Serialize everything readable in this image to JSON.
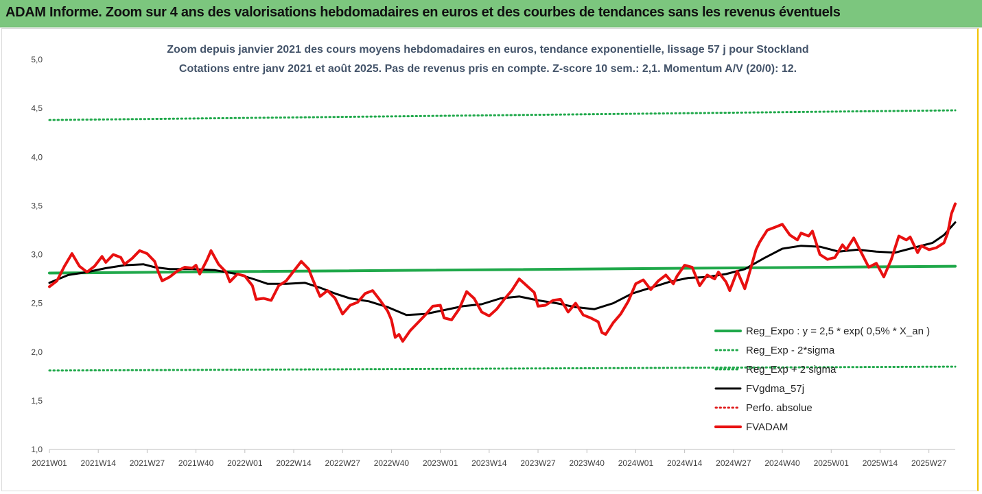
{
  "banner": {
    "title": "ADAM Informe. Zoom sur 4 ans des valorisations hebdomadaires en euros et des courbes de tendances sans les revenus éventuels"
  },
  "colors": {
    "banner_bg": "#7cc67e",
    "trend": "#1fa84a",
    "band": "#1fa84a",
    "smooth": "#000000",
    "perf": "#e02020",
    "price": "#e81010",
    "frame_accent": "#f2c200"
  },
  "chart_data": {
    "type": "line",
    "title": [
      "Zoom depuis janvier 2021 des cours moyens hebdomadaires en euros, tendance exponentielle, lissage 57 j pour Stockland",
      "Cotations entre janv 2021 et août 2025. Pas de revenus pris en compte. Z-score 10 sem.: 2,1. Momentum A/V (20/0): 12."
    ],
    "ylim": [
      1.0,
      5.0
    ],
    "yticks": [
      "1,0",
      "1,5",
      "2,0",
      "2,5",
      "3,0",
      "3,5",
      "4,0",
      "4,5",
      "5,0"
    ],
    "x_range_weeks": [
      0,
      241
    ],
    "xticks": [
      {
        "label": "2021W01",
        "w": 0
      },
      {
        "label": "2021W14",
        "w": 13
      },
      {
        "label": "2021W27",
        "w": 26
      },
      {
        "label": "2021W40",
        "w": 39
      },
      {
        "label": "2022W01",
        "w": 52
      },
      {
        "label": "2022W14",
        "w": 65
      },
      {
        "label": "2022W27",
        "w": 78
      },
      {
        "label": "2022W40",
        "w": 91
      },
      {
        "label": "2023W01",
        "w": 104
      },
      {
        "label": "2023W14",
        "w": 117
      },
      {
        "label": "2023W27",
        "w": 130
      },
      {
        "label": "2023W40",
        "w": 143
      },
      {
        "label": "2024W01",
        "w": 156
      },
      {
        "label": "2024W14",
        "w": 169
      },
      {
        "label": "2024W27",
        "w": 182
      },
      {
        "label": "2024W40",
        "w": 195
      },
      {
        "label": "2025W01",
        "w": 208
      },
      {
        "label": "2025W14",
        "w": 221
      },
      {
        "label": "2025W27",
        "w": 234
      }
    ],
    "grid": false,
    "legend_position": "bottom-right",
    "series": [
      {
        "name": "Reg_Expo : y = 2,5 * exp( 0,5% *  X_an )",
        "style": "solid-thick",
        "color": "#1fa84a",
        "points": [
          [
            0,
            2.81
          ],
          [
            241,
            2.88
          ]
        ]
      },
      {
        "name": "Reg_Exp - 2*sigma",
        "style": "dotted",
        "color": "#1fa84a",
        "points": [
          [
            0,
            4.38
          ],
          [
            241,
            4.48
          ]
        ]
      },
      {
        "name": "Reg_Exp + 2 sigma",
        "style": "dotted",
        "color": "#1fa84a",
        "points": [
          [
            0,
            1.81
          ],
          [
            241,
            1.85
          ]
        ]
      },
      {
        "name": "FVgdma_57j",
        "style": "solid",
        "color": "#000000",
        "points": [
          [
            0,
            2.71
          ],
          [
            5,
            2.79
          ],
          [
            10,
            2.82
          ],
          [
            15,
            2.86
          ],
          [
            20,
            2.89
          ],
          [
            25,
            2.9
          ],
          [
            28,
            2.87
          ],
          [
            32,
            2.85
          ],
          [
            38,
            2.85
          ],
          [
            44,
            2.84
          ],
          [
            50,
            2.8
          ],
          [
            55,
            2.74
          ],
          [
            58,
            2.7
          ],
          [
            63,
            2.7
          ],
          [
            68,
            2.71
          ],
          [
            72,
            2.66
          ],
          [
            76,
            2.6
          ],
          [
            80,
            2.55
          ],
          [
            85,
            2.52
          ],
          [
            90,
            2.46
          ],
          [
            95,
            2.38
          ],
          [
            100,
            2.39
          ],
          [
            105,
            2.43
          ],
          [
            110,
            2.47
          ],
          [
            115,
            2.49
          ],
          [
            120,
            2.55
          ],
          [
            125,
            2.57
          ],
          [
            130,
            2.53
          ],
          [
            135,
            2.5
          ],
          [
            140,
            2.46
          ],
          [
            145,
            2.44
          ],
          [
            150,
            2.5
          ],
          [
            155,
            2.6
          ],
          [
            160,
            2.66
          ],
          [
            165,
            2.72
          ],
          [
            170,
            2.76
          ],
          [
            175,
            2.77
          ],
          [
            180,
            2.8
          ],
          [
            185,
            2.85
          ],
          [
            190,
            2.96
          ],
          [
            195,
            3.06
          ],
          [
            200,
            3.09
          ],
          [
            205,
            3.08
          ],
          [
            210,
            3.03
          ],
          [
            215,
            3.05
          ],
          [
            220,
            3.03
          ],
          [
            225,
            3.02
          ],
          [
            230,
            3.07
          ],
          [
            235,
            3.12
          ],
          [
            238,
            3.2
          ],
          [
            241,
            3.33
          ]
        ]
      },
      {
        "name": "Perfo. absolue",
        "style": "dotted",
        "color": "#e02020",
        "points": []
      },
      {
        "name": "FVADAM",
        "style": "solid-thick",
        "color": "#e81010",
        "points": [
          [
            0,
            2.67
          ],
          [
            2,
            2.73
          ],
          [
            4,
            2.88
          ],
          [
            6,
            3.01
          ],
          [
            8,
            2.88
          ],
          [
            10,
            2.82
          ],
          [
            12,
            2.88
          ],
          [
            14,
            2.98
          ],
          [
            15,
            2.92
          ],
          [
            17,
            3.0
          ],
          [
            19,
            2.97
          ],
          [
            20,
            2.9
          ],
          [
            22,
            2.96
          ],
          [
            24,
            3.04
          ],
          [
            26,
            3.01
          ],
          [
            28,
            2.93
          ],
          [
            29,
            2.82
          ],
          [
            30,
            2.73
          ],
          [
            32,
            2.77
          ],
          [
            34,
            2.83
          ],
          [
            36,
            2.87
          ],
          [
            38,
            2.86
          ],
          [
            39,
            2.89
          ],
          [
            40,
            2.8
          ],
          [
            42,
            2.95
          ],
          [
            43,
            3.04
          ],
          [
            45,
            2.9
          ],
          [
            47,
            2.82
          ],
          [
            48,
            2.72
          ],
          [
            50,
            2.8
          ],
          [
            52,
            2.78
          ],
          [
            54,
            2.68
          ],
          [
            55,
            2.54
          ],
          [
            57,
            2.55
          ],
          [
            59,
            2.53
          ],
          [
            61,
            2.68
          ],
          [
            63,
            2.73
          ],
          [
            66,
            2.88
          ],
          [
            67,
            2.93
          ],
          [
            69,
            2.85
          ],
          [
            70,
            2.75
          ],
          [
            72,
            2.57
          ],
          [
            74,
            2.63
          ],
          [
            76,
            2.55
          ],
          [
            78,
            2.39
          ],
          [
            80,
            2.48
          ],
          [
            82,
            2.51
          ],
          [
            84,
            2.6
          ],
          [
            86,
            2.63
          ],
          [
            88,
            2.53
          ],
          [
            90,
            2.42
          ],
          [
            91,
            2.33
          ],
          [
            92,
            2.15
          ],
          [
            93,
            2.18
          ],
          [
            94,
            2.11
          ],
          [
            96,
            2.22
          ],
          [
            98,
            2.3
          ],
          [
            100,
            2.38
          ],
          [
            102,
            2.47
          ],
          [
            104,
            2.48
          ],
          [
            105,
            2.35
          ],
          [
            107,
            2.33
          ],
          [
            109,
            2.44
          ],
          [
            111,
            2.62
          ],
          [
            113,
            2.55
          ],
          [
            115,
            2.41
          ],
          [
            117,
            2.37
          ],
          [
            119,
            2.44
          ],
          [
            121,
            2.54
          ],
          [
            123,
            2.63
          ],
          [
            125,
            2.75
          ],
          [
            127,
            2.68
          ],
          [
            129,
            2.61
          ],
          [
            130,
            2.47
          ],
          [
            132,
            2.48
          ],
          [
            134,
            2.53
          ],
          [
            136,
            2.54
          ],
          [
            138,
            2.41
          ],
          [
            140,
            2.5
          ],
          [
            142,
            2.38
          ],
          [
            144,
            2.35
          ],
          [
            146,
            2.31
          ],
          [
            147,
            2.2
          ],
          [
            148,
            2.18
          ],
          [
            150,
            2.3
          ],
          [
            152,
            2.39
          ],
          [
            154,
            2.52
          ],
          [
            156,
            2.7
          ],
          [
            158,
            2.74
          ],
          [
            160,
            2.64
          ],
          [
            162,
            2.73
          ],
          [
            164,
            2.79
          ],
          [
            166,
            2.7
          ],
          [
            167,
            2.78
          ],
          [
            169,
            2.89
          ],
          [
            171,
            2.87
          ],
          [
            173,
            2.68
          ],
          [
            175,
            2.79
          ],
          [
            177,
            2.75
          ],
          [
            178,
            2.82
          ],
          [
            180,
            2.72
          ],
          [
            181,
            2.63
          ],
          [
            183,
            2.83
          ],
          [
            185,
            2.65
          ],
          [
            186,
            2.78
          ],
          [
            188,
            3.05
          ],
          [
            189,
            3.13
          ],
          [
            191,
            3.25
          ],
          [
            193,
            3.28
          ],
          [
            195,
            3.31
          ],
          [
            197,
            3.2
          ],
          [
            199,
            3.15
          ],
          [
            200,
            3.22
          ],
          [
            202,
            3.19
          ],
          [
            203,
            3.24
          ],
          [
            205,
            3.0
          ],
          [
            207,
            2.95
          ],
          [
            209,
            2.97
          ],
          [
            211,
            3.1
          ],
          [
            212,
            3.05
          ],
          [
            214,
            3.17
          ],
          [
            216,
            3.02
          ],
          [
            218,
            2.87
          ],
          [
            220,
            2.91
          ],
          [
            222,
            2.77
          ],
          [
            224,
            2.95
          ],
          [
            226,
            3.19
          ],
          [
            228,
            3.15
          ],
          [
            229,
            3.18
          ],
          [
            231,
            3.02
          ],
          [
            232,
            3.09
          ],
          [
            234,
            3.05
          ],
          [
            236,
            3.07
          ],
          [
            238,
            3.12
          ],
          [
            239,
            3.22
          ],
          [
            240,
            3.42
          ],
          [
            241,
            3.52
          ]
        ]
      }
    ]
  }
}
